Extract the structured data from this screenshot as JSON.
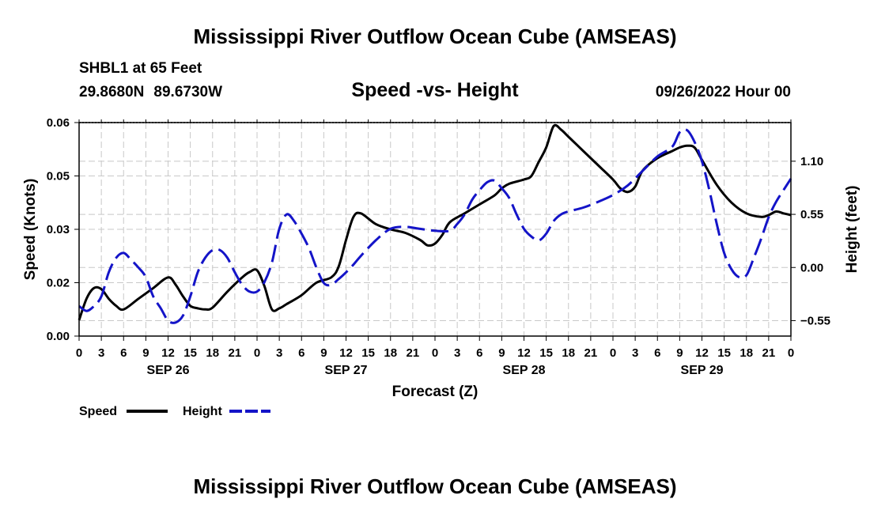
{
  "header": {
    "main_title": "Mississippi River Outflow Ocean Cube (AMSEAS)",
    "station_line": "SHBL1 at 65 Feet",
    "latitude": "29.8680N",
    "longitude": "89.6730W",
    "chart_title": "Speed -vs- Height",
    "run_time": "09/26/2022 Hour 00"
  },
  "footer": {
    "title": "Mississippi River Outflow Ocean Cube (AMSEAS)"
  },
  "colors": {
    "speed": "#000000",
    "height": "#1414c8",
    "grid": "#c8c8c8"
  },
  "chart_data": {
    "type": "line",
    "xlabel": "Forecast (Z)",
    "ylabel_left": "Speed (Knots)",
    "ylabel_right": "Height (feet)",
    "x_range": [
      0,
      96
    ],
    "x_tick_step": 3,
    "x_tick_labels": [
      "0",
      "3",
      "6",
      "9",
      "12",
      "15",
      "18",
      "21",
      "0",
      "3",
      "6",
      "9",
      "12",
      "15",
      "18",
      "21",
      "0",
      "3",
      "6",
      "9",
      "12",
      "15",
      "18",
      "21",
      "0",
      "3",
      "6",
      "9",
      "12",
      "15",
      "18",
      "21",
      "0"
    ],
    "date_labels": [
      {
        "x": 12,
        "label": "SEP 26"
      },
      {
        "x": 36,
        "label": "SEP 27"
      },
      {
        "x": 60,
        "label": "SEP 28"
      },
      {
        "x": 84,
        "label": "SEP 29"
      }
    ],
    "left_axis": {
      "range": [
        0.0,
        0.06
      ],
      "ticks": [
        {
          "value": 0.0,
          "label": "0.00"
        },
        {
          "value": 0.015,
          "label": "0.02"
        },
        {
          "value": 0.03,
          "label": "0.03"
        },
        {
          "value": 0.045,
          "label": "0.05"
        },
        {
          "value": 0.06,
          "label": "0.06"
        }
      ]
    },
    "right_axis": {
      "range": [
        -0.71,
        1.5
      ],
      "ticks": [
        {
          "value": -0.55,
          "label": "−0.55"
        },
        {
          "value": 0.0,
          "label": "0.00"
        },
        {
          "value": 0.55,
          "label": "0.55"
        },
        {
          "value": 1.1,
          "label": "1.10"
        }
      ]
    },
    "legend": [
      {
        "name": "Speed",
        "style": "solid"
      },
      {
        "name": "Height",
        "style": "dashed"
      }
    ],
    "series": [
      {
        "name": "Speed",
        "axis": "left",
        "style": "solid",
        "x": [
          0,
          1,
          2,
          3,
          4,
          5,
          6,
          8,
          10,
          12,
          13,
          14,
          15,
          16,
          17,
          18,
          20,
          22,
          23,
          24,
          25,
          26,
          27,
          28,
          30,
          32,
          34,
          35,
          36,
          37,
          38,
          40,
          42,
          44,
          46,
          47,
          48,
          49,
          50,
          52,
          54,
          56,
          57,
          58,
          60,
          61,
          62,
          63,
          64,
          65,
          66,
          68,
          70,
          72,
          73,
          74,
          75,
          76,
          78,
          80,
          81,
          82,
          83,
          84,
          86,
          88,
          90,
          92,
          93,
          94,
          95,
          96
        ],
        "y": [
          0.0045,
          0.0105,
          0.0135,
          0.0132,
          0.0105,
          0.0085,
          0.0075,
          0.0105,
          0.0135,
          0.0165,
          0.0145,
          0.0112,
          0.0085,
          0.0078,
          0.0075,
          0.008,
          0.0125,
          0.0165,
          0.018,
          0.0185,
          0.014,
          0.0075,
          0.0078,
          0.009,
          0.0115,
          0.015,
          0.0165,
          0.0195,
          0.027,
          0.0335,
          0.0345,
          0.0315,
          0.03,
          0.029,
          0.027,
          0.0255,
          0.026,
          0.0285,
          0.032,
          0.0345,
          0.037,
          0.0395,
          0.0415,
          0.0428,
          0.044,
          0.045,
          0.049,
          0.053,
          0.059,
          0.058,
          0.056,
          0.052,
          0.048,
          0.044,
          0.0415,
          0.0405,
          0.042,
          0.0465,
          0.05,
          0.052,
          0.053,
          0.0535,
          0.053,
          0.0495,
          0.0425,
          0.0375,
          0.0345,
          0.0335,
          0.034,
          0.035,
          0.0345,
          0.034
        ]
      },
      {
        "name": "Height",
        "axis": "right",
        "style": "dashed",
        "x": [
          0,
          1,
          2,
          3,
          4,
          5,
          6,
          7,
          8,
          9,
          10,
          11,
          12,
          13,
          14,
          15,
          16,
          17,
          18,
          19,
          20,
          21,
          22,
          23,
          24,
          25,
          26,
          27,
          28,
          29,
          30,
          31,
          32,
          33,
          34,
          35,
          36,
          37,
          38,
          40,
          42,
          44,
          46,
          48,
          50,
          51,
          52,
          53,
          54,
          55,
          56,
          57,
          58,
          59,
          60,
          61,
          62,
          63,
          64,
          65,
          66,
          68,
          70,
          72,
          74,
          76,
          78,
          80,
          81,
          82,
          83,
          84,
          85,
          86,
          87,
          88,
          89,
          90,
          91,
          92,
          93,
          94,
          95,
          96
        ],
        "y": [
          -0.4,
          -0.45,
          -0.4,
          -0.3,
          -0.05,
          0.1,
          0.15,
          0.08,
          0.0,
          -0.1,
          -0.3,
          -0.42,
          -0.55,
          -0.57,
          -0.5,
          -0.3,
          -0.05,
          0.1,
          0.18,
          0.18,
          0.1,
          -0.05,
          -0.18,
          -0.25,
          -0.25,
          -0.15,
          0.05,
          0.4,
          0.55,
          0.48,
          0.35,
          0.2,
          0.0,
          -0.16,
          -0.18,
          -0.12,
          -0.05,
          0.03,
          0.12,
          0.28,
          0.4,
          0.42,
          0.4,
          0.38,
          0.38,
          0.45,
          0.55,
          0.7,
          0.8,
          0.88,
          0.9,
          0.82,
          0.72,
          0.55,
          0.4,
          0.32,
          0.28,
          0.35,
          0.48,
          0.55,
          0.58,
          0.62,
          0.68,
          0.75,
          0.85,
          1.0,
          1.15,
          1.25,
          1.4,
          1.42,
          1.3,
          1.1,
          0.8,
          0.45,
          0.15,
          -0.02,
          -0.1,
          -0.08,
          0.1,
          0.3,
          0.52,
          0.68,
          0.8,
          0.92
        ]
      }
    ]
  }
}
